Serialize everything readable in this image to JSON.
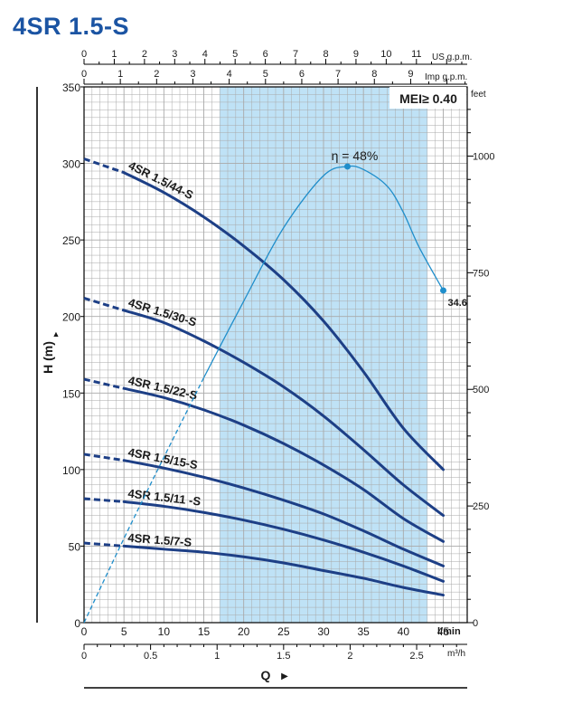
{
  "page": {
    "title": "4SR 1.5-S"
  },
  "colors": {
    "curve": "#1d3f86",
    "efficiency": "#1f8ecb",
    "highlight_band": "#bfe2f6",
    "grid": "#a9a9a9",
    "text": "#1a1a1a",
    "title": "#1b54a3"
  },
  "chart_data": {
    "type": "line",
    "title": "4SR 1.5-S",
    "mei_label": "MEI≥ 0.40",
    "y_axis": {
      "label": "H (m)",
      "arrow": "▲",
      "range": [
        0,
        350
      ],
      "ticks": [
        0,
        50,
        100,
        150,
        200,
        250,
        300,
        350
      ]
    },
    "y_axis_right": {
      "label": "feet",
      "ticks": [
        0,
        250,
        500,
        750,
        1000
      ]
    },
    "x_axis": {
      "label": "Q",
      "arrow": "▶",
      "unit": "l/min",
      "range": [
        0,
        48
      ],
      "ticks": [
        0,
        5,
        10,
        15,
        20,
        25,
        30,
        35,
        40,
        45
      ]
    },
    "x_axis_m3h": {
      "unit": "m³/h",
      "ticks": [
        0,
        0.5,
        1,
        1.5,
        2,
        2.5
      ],
      "tick_labels": [
        "0",
        "0.5",
        "1",
        "1.5",
        "2",
        "2.5"
      ]
    },
    "x_axis_usgpm": {
      "unit": "US g.p.m.",
      "ticks": [
        0,
        1,
        2,
        3,
        4,
        5,
        6,
        7,
        8,
        9,
        10,
        11
      ]
    },
    "x_axis_impgpm": {
      "unit": "Imp g.p.m.",
      "ticks": [
        0,
        1,
        2,
        3,
        4,
        5,
        6,
        7,
        8,
        9
      ]
    },
    "highlight_range_lmin": [
      17,
      43
    ],
    "series": [
      {
        "name": "4SR 1.5/44-S",
        "dashed_to": 5,
        "x": [
          0,
          5,
          10,
          15,
          20,
          25,
          30,
          35,
          40,
          45
        ],
        "values": [
          303,
          294,
          281,
          265,
          246,
          224,
          197,
          164,
          127,
          100
        ]
      },
      {
        "name": "4SR 1.5/30-S",
        "dashed_to": 5,
        "x": [
          0,
          5,
          10,
          15,
          20,
          25,
          30,
          35,
          40,
          45
        ],
        "values": [
          212,
          204,
          196,
          184,
          170,
          154,
          135,
          113,
          90,
          70
        ]
      },
      {
        "name": "4SR 1.5/22-S",
        "dashed_to": 5,
        "x": [
          0,
          5,
          10,
          15,
          20,
          25,
          30,
          35,
          40,
          45
        ],
        "values": [
          159,
          153,
          147,
          139,
          129,
          117,
          103,
          87,
          68,
          53
        ]
      },
      {
        "name": "4SR 1.5/15-S",
        "dashed_to": 5,
        "x": [
          0,
          5,
          10,
          15,
          20,
          25,
          30,
          35,
          40,
          45
        ],
        "values": [
          110,
          106,
          101,
          95,
          88,
          80,
          71,
          60,
          48,
          37
        ]
      },
      {
        "name": "4SR 1.5/11 -S",
        "dashed_to": 5,
        "x": [
          0,
          5,
          10,
          15,
          20,
          25,
          30,
          35,
          40,
          45
        ],
        "values": [
          81,
          79,
          76,
          72,
          67,
          61,
          54,
          46,
          37,
          27
        ]
      },
      {
        "name": "4SR 1.5/7-S",
        "dashed_to": 5,
        "x": [
          0,
          5,
          10,
          15,
          20,
          25,
          30,
          35,
          40,
          45
        ],
        "values": [
          52,
          50,
          48,
          46,
          43,
          39,
          34,
          29,
          23,
          18
        ]
      }
    ],
    "efficiency": {
      "peak_label": "η = 48%",
      "end_label": "34.6",
      "dashed_to": 15,
      "x": [
        0,
        5,
        10,
        15,
        20,
        25,
        30,
        33,
        35,
        38,
        40,
        42,
        45
      ],
      "values": [
        0,
        55,
        108,
        160,
        210,
        258,
        292,
        298,
        296,
        285,
        268,
        245,
        217
      ]
    }
  }
}
